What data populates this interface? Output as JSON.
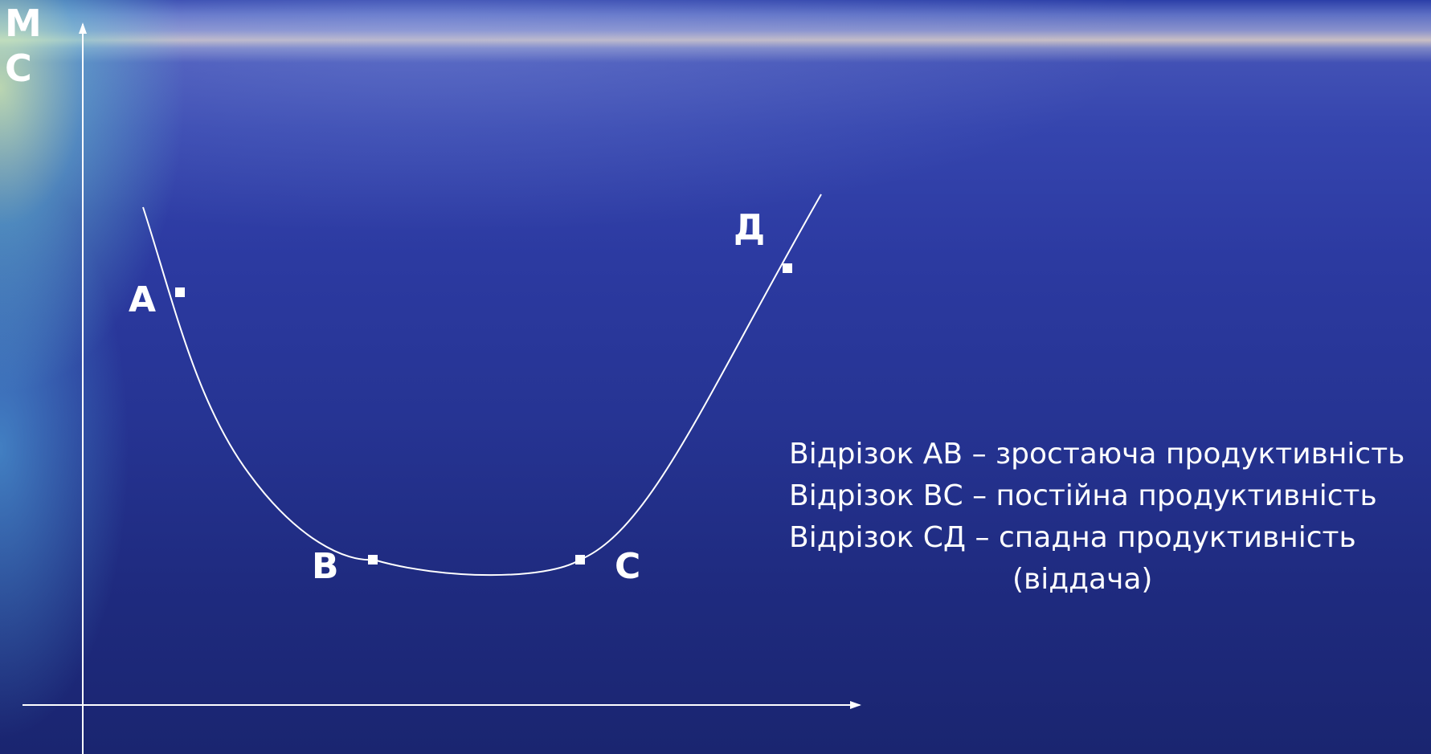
{
  "axis": {
    "y_label_line1": "М",
    "y_label_line2": "С"
  },
  "points": [
    {
      "id": "A",
      "label": "А"
    },
    {
      "id": "B",
      "label": "В"
    },
    {
      "id": "C",
      "label": "С"
    },
    {
      "id": "D",
      "label": "Д"
    }
  ],
  "legend": {
    "line1": "Відрізок АВ – зростаюча продуктивність",
    "line2": "Відрізок ВС – постійна продуктивність",
    "line3": "Відрізок СД – спадна продуктивність",
    "line4": "(віддача)"
  },
  "colors": {
    "curve": "#ffffff",
    "axes": "#ffffff",
    "marker": "#ffffff",
    "text": "#ffffff"
  }
}
